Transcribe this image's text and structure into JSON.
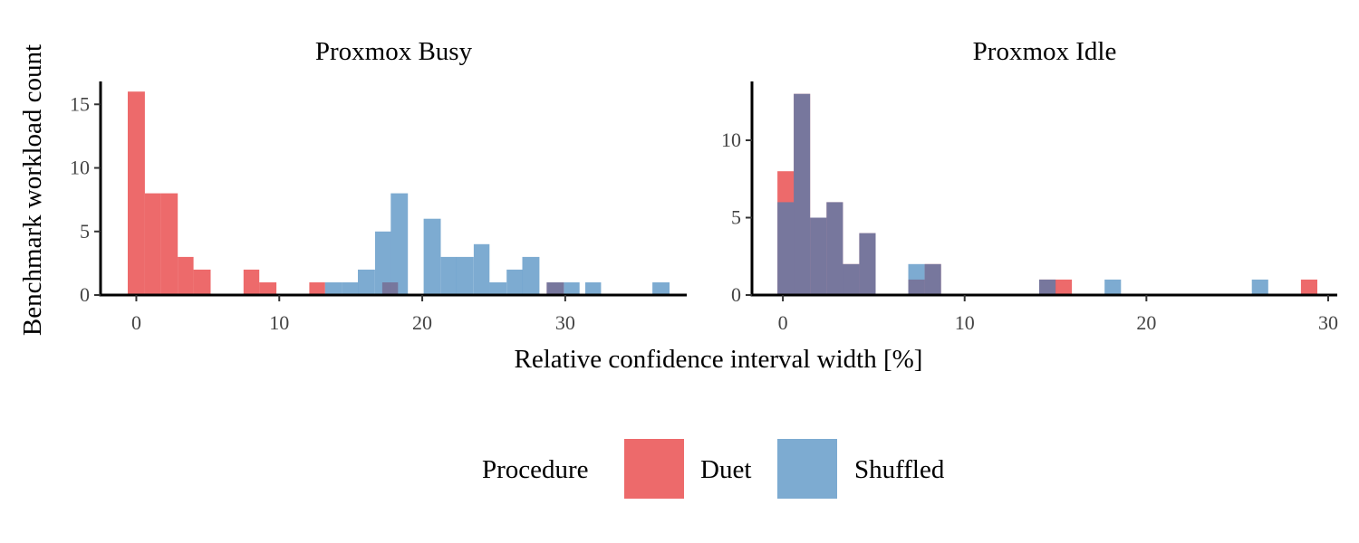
{
  "chart_data": {
    "type": "bar",
    "subtype": "histogram",
    "xlabel": "Relative confidence interval width [%]",
    "ylabel": "Benchmark workload count",
    "legend": {
      "title": "Procedure",
      "position": "bottom",
      "entries": [
        {
          "name": "Duet",
          "color": "#E41A1C"
        },
        {
          "name": "Shuffled",
          "color": "#377EB8"
        }
      ]
    },
    "fill_opacity": 0.65,
    "panels": [
      {
        "title": "Proxmox Busy",
        "xlim": [
          -2.5,
          38.5
        ],
        "ylim": [
          0,
          16.8
        ],
        "x_ticks": [
          0,
          10,
          20,
          30
        ],
        "x_tick_labels": [
          "0",
          "10",
          "20",
          "30"
        ],
        "y_ticks": [
          0,
          5,
          10,
          15
        ],
        "y_tick_labels": [
          "0",
          "5",
          "10",
          "15"
        ],
        "series": [
          {
            "name": "Duet",
            "bins": [
              {
                "x0": -0.6,
                "x1": 0.6,
                "count": 16
              },
              {
                "x0": 0.6,
                "x1": 1.7,
                "count": 8
              },
              {
                "x0": 1.7,
                "x1": 2.9,
                "count": 8
              },
              {
                "x0": 2.9,
                "x1": 4.0,
                "count": 3
              },
              {
                "x0": 4.0,
                "x1": 5.2,
                "count": 2
              },
              {
                "x0": 7.5,
                "x1": 8.6,
                "count": 2
              },
              {
                "x0": 8.6,
                "x1": 9.8,
                "count": 1
              },
              {
                "x0": 12.1,
                "x1": 13.2,
                "count": 1
              },
              {
                "x0": 17.2,
                "x1": 18.3,
                "count": 1
              },
              {
                "x0": 28.7,
                "x1": 29.9,
                "count": 1
              }
            ]
          },
          {
            "name": "Shuffled",
            "bins": [
              {
                "x0": 13.2,
                "x1": 14.4,
                "count": 1
              },
              {
                "x0": 14.4,
                "x1": 15.5,
                "count": 1
              },
              {
                "x0": 15.5,
                "x1": 16.7,
                "count": 2
              },
              {
                "x0": 16.7,
                "x1": 17.8,
                "count": 5
              },
              {
                "x0": 17.8,
                "x1": 19.0,
                "count": 8
              },
              {
                "x0": 20.1,
                "x1": 21.3,
                "count": 6
              },
              {
                "x0": 21.3,
                "x1": 22.4,
                "count": 3
              },
              {
                "x0": 22.4,
                "x1": 23.6,
                "count": 3
              },
              {
                "x0": 23.6,
                "x1": 24.7,
                "count": 4
              },
              {
                "x0": 24.7,
                "x1": 25.9,
                "count": 1
              },
              {
                "x0": 25.9,
                "x1": 27.0,
                "count": 2
              },
              {
                "x0": 27.0,
                "x1": 28.2,
                "count": 3
              },
              {
                "x0": 28.7,
                "x1": 29.9,
                "count": 1
              },
              {
                "x0": 29.9,
                "x1": 31.0,
                "count": 1
              },
              {
                "x0": 31.4,
                "x1": 32.5,
                "count": 1
              },
              {
                "x0": 36.1,
                "x1": 37.3,
                "count": 1
              }
            ]
          }
        ]
      },
      {
        "title": "Proxmox Idle",
        "xlim": [
          -1.7,
          30.5
        ],
        "ylim": [
          0,
          13.8
        ],
        "x_ticks": [
          0,
          10,
          20,
          30
        ],
        "x_tick_labels": [
          "0",
          "10",
          "20",
          "30"
        ],
        "y_ticks": [
          0,
          5,
          10
        ],
        "y_tick_labels": [
          "0",
          "5",
          "10"
        ],
        "series": [
          {
            "name": "Duet",
            "bins": [
              {
                "x0": -0.3,
                "x1": 0.6,
                "count": 8
              },
              {
                "x0": 0.6,
                "x1": 1.5,
                "count": 13
              },
              {
                "x0": 1.5,
                "x1": 2.4,
                "count": 5
              },
              {
                "x0": 2.4,
                "x1": 3.3,
                "count": 6
              },
              {
                "x0": 3.3,
                "x1": 4.2,
                "count": 2
              },
              {
                "x0": 4.2,
                "x1": 5.1,
                "count": 4
              },
              {
                "x0": 6.9,
                "x1": 7.8,
                "count": 1
              },
              {
                "x0": 7.8,
                "x1": 8.7,
                "count": 2
              },
              {
                "x0": 14.1,
                "x1": 15.0,
                "count": 1
              },
              {
                "x0": 15.0,
                "x1": 15.9,
                "count": 1
              },
              {
                "x0": 28.5,
                "x1": 29.4,
                "count": 1
              }
            ]
          },
          {
            "name": "Shuffled",
            "bins": [
              {
                "x0": -0.3,
                "x1": 0.6,
                "count": 6
              },
              {
                "x0": 0.6,
                "x1": 1.5,
                "count": 13
              },
              {
                "x0": 1.5,
                "x1": 2.4,
                "count": 5
              },
              {
                "x0": 2.4,
                "x1": 3.3,
                "count": 6
              },
              {
                "x0": 3.3,
                "x1": 4.2,
                "count": 2
              },
              {
                "x0": 4.2,
                "x1": 5.1,
                "count": 4
              },
              {
                "x0": 6.9,
                "x1": 7.8,
                "count": 2
              },
              {
                "x0": 7.8,
                "x1": 8.7,
                "count": 2
              },
              {
                "x0": 14.1,
                "x1": 15.0,
                "count": 1
              },
              {
                "x0": 17.7,
                "x1": 18.6,
                "count": 1
              },
              {
                "x0": 25.8,
                "x1": 26.7,
                "count": 1
              }
            ]
          }
        ]
      }
    ]
  }
}
